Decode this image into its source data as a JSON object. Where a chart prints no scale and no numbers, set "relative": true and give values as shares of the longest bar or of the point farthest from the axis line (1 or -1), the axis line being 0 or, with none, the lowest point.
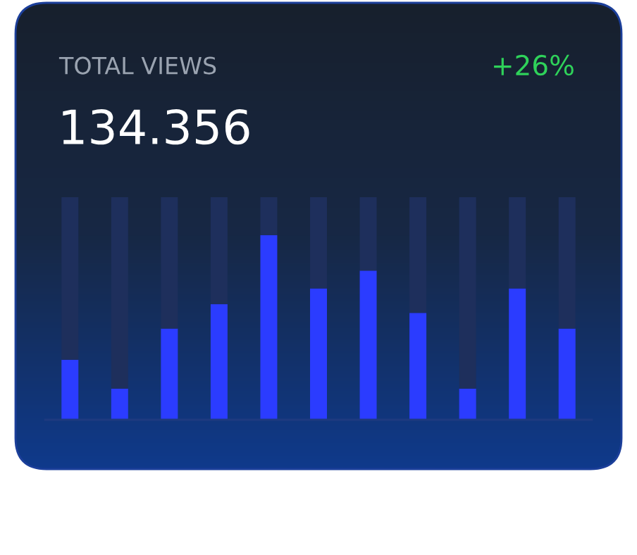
{
  "chart_data": {
    "type": "bar",
    "title": "TOTAL VIEWS",
    "subtitle": "134.356",
    "annotations": [
      "+26%"
    ],
    "relative": true,
    "stacked": true,
    "categories": [
      null,
      null,
      null,
      null,
      null,
      null,
      null,
      null,
      null,
      null,
      null
    ],
    "series": [
      {
        "color": "#2b3cff",
        "values": [
          0.27,
          0.14,
          0.41,
          0.52,
          0.83,
          0.59,
          0.67,
          0.48,
          0.14,
          0.59,
          0.41
        ]
      },
      {
        "color": "#1e2f5c",
        "values": [
          0.73,
          0.86,
          0.59,
          0.48,
          0.17,
          0.41,
          0.33,
          0.52,
          0.86,
          0.41,
          0.59
        ]
      }
    ],
    "grid": false,
    "legend": false
  }
}
